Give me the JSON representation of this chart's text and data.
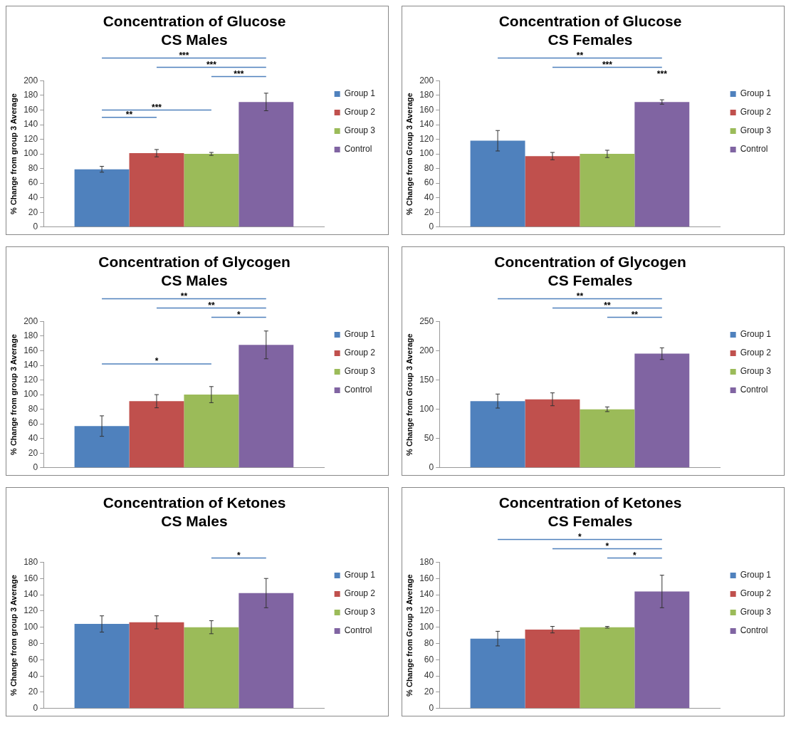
{
  "chart_data": [
    {
      "type": "bar",
      "title": "Concentration of Glucose",
      "subtitle": "CS Males",
      "ylabel": "% Change from group 3 Average",
      "categories": [
        null
      ],
      "legend": "right",
      "grid": false,
      "ylim": [
        0,
        200
      ],
      "yticks": [
        0,
        20,
        40,
        60,
        80,
        100,
        120,
        140,
        160,
        180,
        200
      ],
      "series": [
        {
          "name": "Group 1",
          "color": "#4f81bd",
          "values": [
            79
          ],
          "errors": [
            4
          ]
        },
        {
          "name": "Group 2",
          "color": "#c0504d",
          "values": [
            101
          ],
          "errors": [
            5
          ]
        },
        {
          "name": "Group 3",
          "color": "#9bbb59",
          "values": [
            100
          ],
          "errors": [
            2
          ]
        },
        {
          "name": "Control",
          "color": "#8064a2",
          "values": [
            171
          ],
          "errors": [
            12
          ]
        }
      ],
      "annotations": [
        "***",
        "***",
        "***",
        "***",
        "**"
      ]
    },
    {
      "type": "bar",
      "title": "Concentration of Glucose",
      "subtitle": "CS Females",
      "ylabel": "% Change from Group 3 Average",
      "categories": [
        null
      ],
      "legend": "right",
      "grid": false,
      "ylim": [
        0,
        200
      ],
      "yticks": [
        0,
        20,
        40,
        60,
        80,
        100,
        120,
        140,
        160,
        180,
        200
      ],
      "series": [
        {
          "name": "Group 1",
          "color": "#4f81bd",
          "values": [
            118
          ],
          "errors": [
            14
          ]
        },
        {
          "name": "Group 2",
          "color": "#c0504d",
          "values": [
            97
          ],
          "errors": [
            5
          ]
        },
        {
          "name": "Group 3",
          "color": "#9bbb59",
          "values": [
            100
          ],
          "errors": [
            5
          ]
        },
        {
          "name": "Control",
          "color": "#8064a2",
          "values": [
            171
          ],
          "errors": [
            3
          ]
        }
      ],
      "annotations": [
        "**",
        "***",
        "***"
      ]
    },
    {
      "type": "bar",
      "title": "Concentration of Glycogen",
      "subtitle": "CS Males",
      "ylabel": "% Change from group 3 Average",
      "categories": [
        null
      ],
      "legend": "right",
      "grid": false,
      "ylim": [
        0,
        200
      ],
      "yticks": [
        0,
        20,
        40,
        60,
        80,
        100,
        120,
        140,
        160,
        180,
        200
      ],
      "series": [
        {
          "name": "Group 1",
          "color": "#4f81bd",
          "values": [
            57
          ],
          "errors": [
            14
          ]
        },
        {
          "name": "Group 2",
          "color": "#c0504d",
          "values": [
            91
          ],
          "errors": [
            9
          ]
        },
        {
          "name": "Group 3",
          "color": "#9bbb59",
          "values": [
            100
          ],
          "errors": [
            11
          ]
        },
        {
          "name": "Control",
          "color": "#8064a2",
          "values": [
            168
          ],
          "errors": [
            19
          ]
        }
      ],
      "annotations": [
        "**",
        "**",
        "*",
        "*"
      ]
    },
    {
      "type": "bar",
      "title": "Concentration of Glycogen",
      "subtitle": "CS Females",
      "ylabel": "% Change from Group 3 Average",
      "categories": [
        null
      ],
      "legend": "right",
      "grid": false,
      "ylim": [
        0,
        250
      ],
      "yticks": [
        0,
        50,
        100,
        150,
        200,
        250
      ],
      "series": [
        {
          "name": "Group 1",
          "color": "#4f81bd",
          "values": [
            114
          ],
          "errors": [
            12
          ]
        },
        {
          "name": "Group 2",
          "color": "#c0504d",
          "values": [
            117
          ],
          "errors": [
            11
          ]
        },
        {
          "name": "Group 3",
          "color": "#9bbb59",
          "values": [
            100
          ],
          "errors": [
            4
          ]
        },
        {
          "name": "Control",
          "color": "#8064a2",
          "values": [
            195
          ],
          "errors": [
            10
          ]
        }
      ],
      "annotations": [
        "**",
        "**",
        "**"
      ]
    },
    {
      "type": "bar",
      "title": "Concentration of Ketones",
      "subtitle": "CS Males",
      "ylabel": "% Change from group 3 Average",
      "categories": [
        null
      ],
      "legend": "right",
      "grid": false,
      "ylim": [
        0,
        180
      ],
      "yticks": [
        0,
        20,
        40,
        60,
        80,
        100,
        120,
        140,
        160,
        180
      ],
      "series": [
        {
          "name": "Group 1",
          "color": "#4f81bd",
          "values": [
            104
          ],
          "errors": [
            10
          ]
        },
        {
          "name": "Group 2",
          "color": "#c0504d",
          "values": [
            106
          ],
          "errors": [
            8
          ]
        },
        {
          "name": "Group 3",
          "color": "#9bbb59",
          "values": [
            100
          ],
          "errors": [
            8
          ]
        },
        {
          "name": "Control",
          "color": "#8064a2",
          "values": [
            142
          ],
          "errors": [
            18
          ]
        }
      ],
      "annotations": [
        "*"
      ]
    },
    {
      "type": "bar",
      "title": "Concentration of Ketones",
      "subtitle": "CS Females",
      "ylabel": "% Change from Group 3 Average",
      "categories": [
        null
      ],
      "legend": "right",
      "grid": false,
      "ylim": [
        0,
        180
      ],
      "yticks": [
        0,
        20,
        40,
        60,
        80,
        100,
        120,
        140,
        160,
        180
      ],
      "series": [
        {
          "name": "Group 1",
          "color": "#4f81bd",
          "values": [
            86
          ],
          "errors": [
            9
          ]
        },
        {
          "name": "Group 2",
          "color": "#c0504d",
          "values": [
            97
          ],
          "errors": [
            4
          ]
        },
        {
          "name": "Group 3",
          "color": "#9bbb59",
          "values": [
            100
          ],
          "errors": [
            1
          ]
        },
        {
          "name": "Control",
          "color": "#8064a2",
          "values": [
            144
          ],
          "errors": [
            20
          ]
        }
      ],
      "annotations": [
        "*",
        "*",
        "*"
      ]
    }
  ]
}
